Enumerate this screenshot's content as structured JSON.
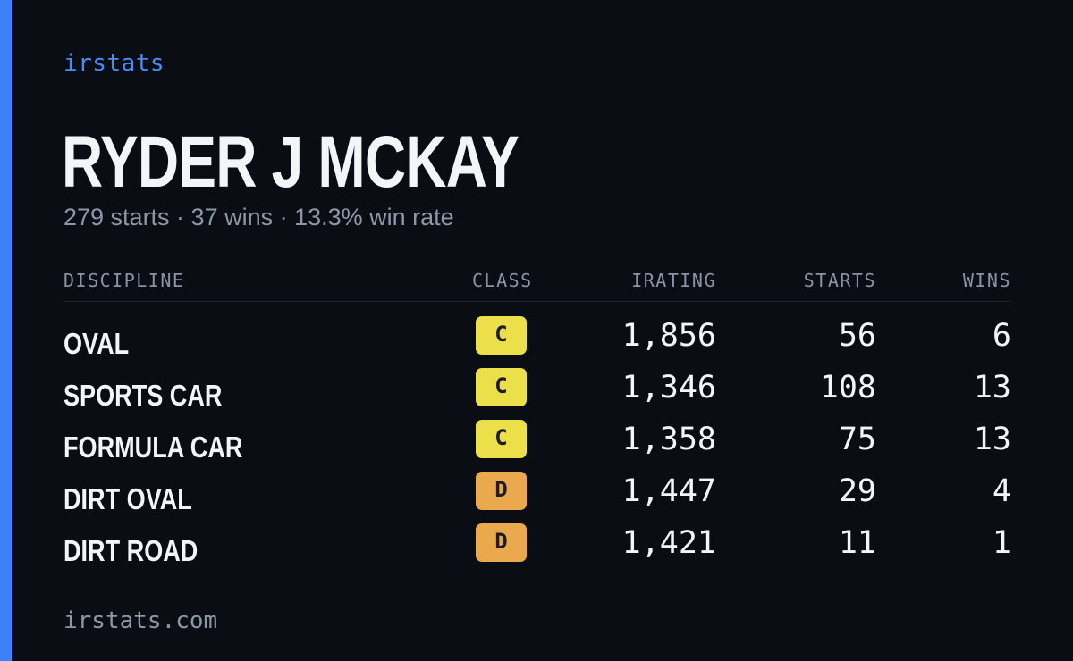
{
  "brand": "irstats",
  "player": {
    "name": "RYDER J MCKAY",
    "summary": "279 starts · 37 wins · 13.3% win rate"
  },
  "table": {
    "headers": {
      "discipline": "DISCIPLINE",
      "class": "CLASS",
      "irating": "IRATING",
      "starts": "STARTS",
      "wins": "WINS"
    },
    "rows": [
      {
        "discipline": "OVAL",
        "class": "C",
        "irating": "1,856",
        "starts": "56",
        "wins": "6"
      },
      {
        "discipline": "SPORTS CAR",
        "class": "C",
        "irating": "1,346",
        "starts": "108",
        "wins": "13"
      },
      {
        "discipline": "FORMULA CAR",
        "class": "C",
        "irating": "1,358",
        "starts": "75",
        "wins": "13"
      },
      {
        "discipline": "DIRT OVAL",
        "class": "D",
        "irating": "1,447",
        "starts": "29",
        "wins": "4"
      },
      {
        "discipline": "DIRT ROAD",
        "class": "D",
        "irating": "1,421",
        "starts": "11",
        "wins": "1"
      }
    ]
  },
  "class_colors": {
    "C": "#ebe04a",
    "D": "#eaa94c"
  },
  "accent_color": "#3b82f6",
  "footer": {
    "url": "irstats.com"
  }
}
